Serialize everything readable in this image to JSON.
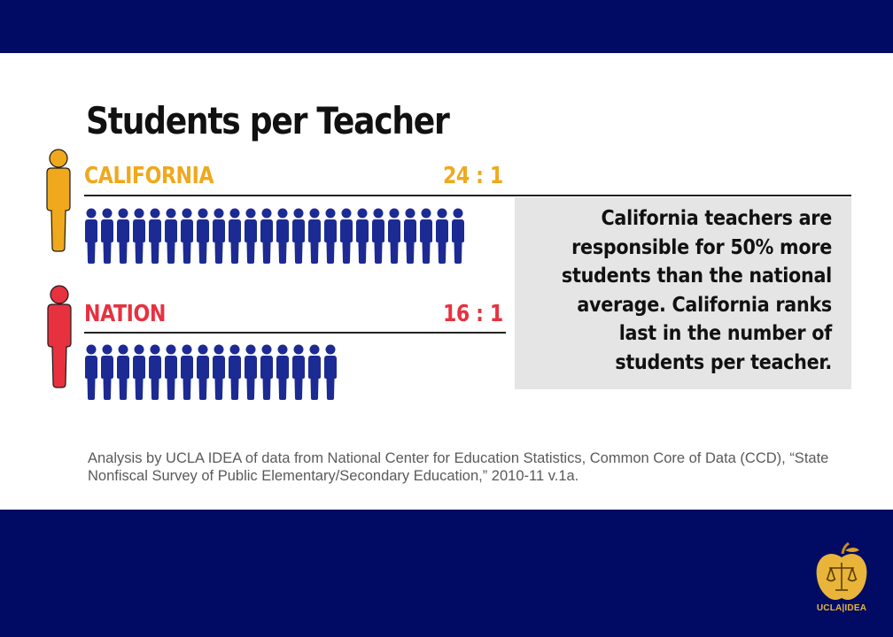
{
  "title": "Students per Teacher",
  "colors": {
    "band": "#020b64",
    "california": "#f0a81c",
    "nation": "#e8313f",
    "student": "#1c2b93",
    "callout_bg": "#e5e5e5",
    "logo_gold": "#e8b53a"
  },
  "rows": [
    {
      "label": "CALIFORNIA",
      "ratio": "24 : 1",
      "students_per_teacher": 24,
      "teacher_icon": "teacher-figure-icon"
    },
    {
      "label": "NATION",
      "ratio": "16 : 1",
      "students_per_teacher": 16,
      "teacher_icon": "teacher-figure-icon"
    }
  ],
  "callout": "California teachers are responsible for 50% more students than the national average. California ranks last in the number of students per teacher.",
  "source": "Analysis by UCLA IDEA of data from National Center for Education Statistics, Common Core of Data (CCD), “State Nonfiscal Survey of Public Elementary/Secondary Education,” 2010-11 v.1a.",
  "logo": {
    "text": "UCLA|IDEA",
    "icon": "golden-apple-scales-icon"
  }
}
